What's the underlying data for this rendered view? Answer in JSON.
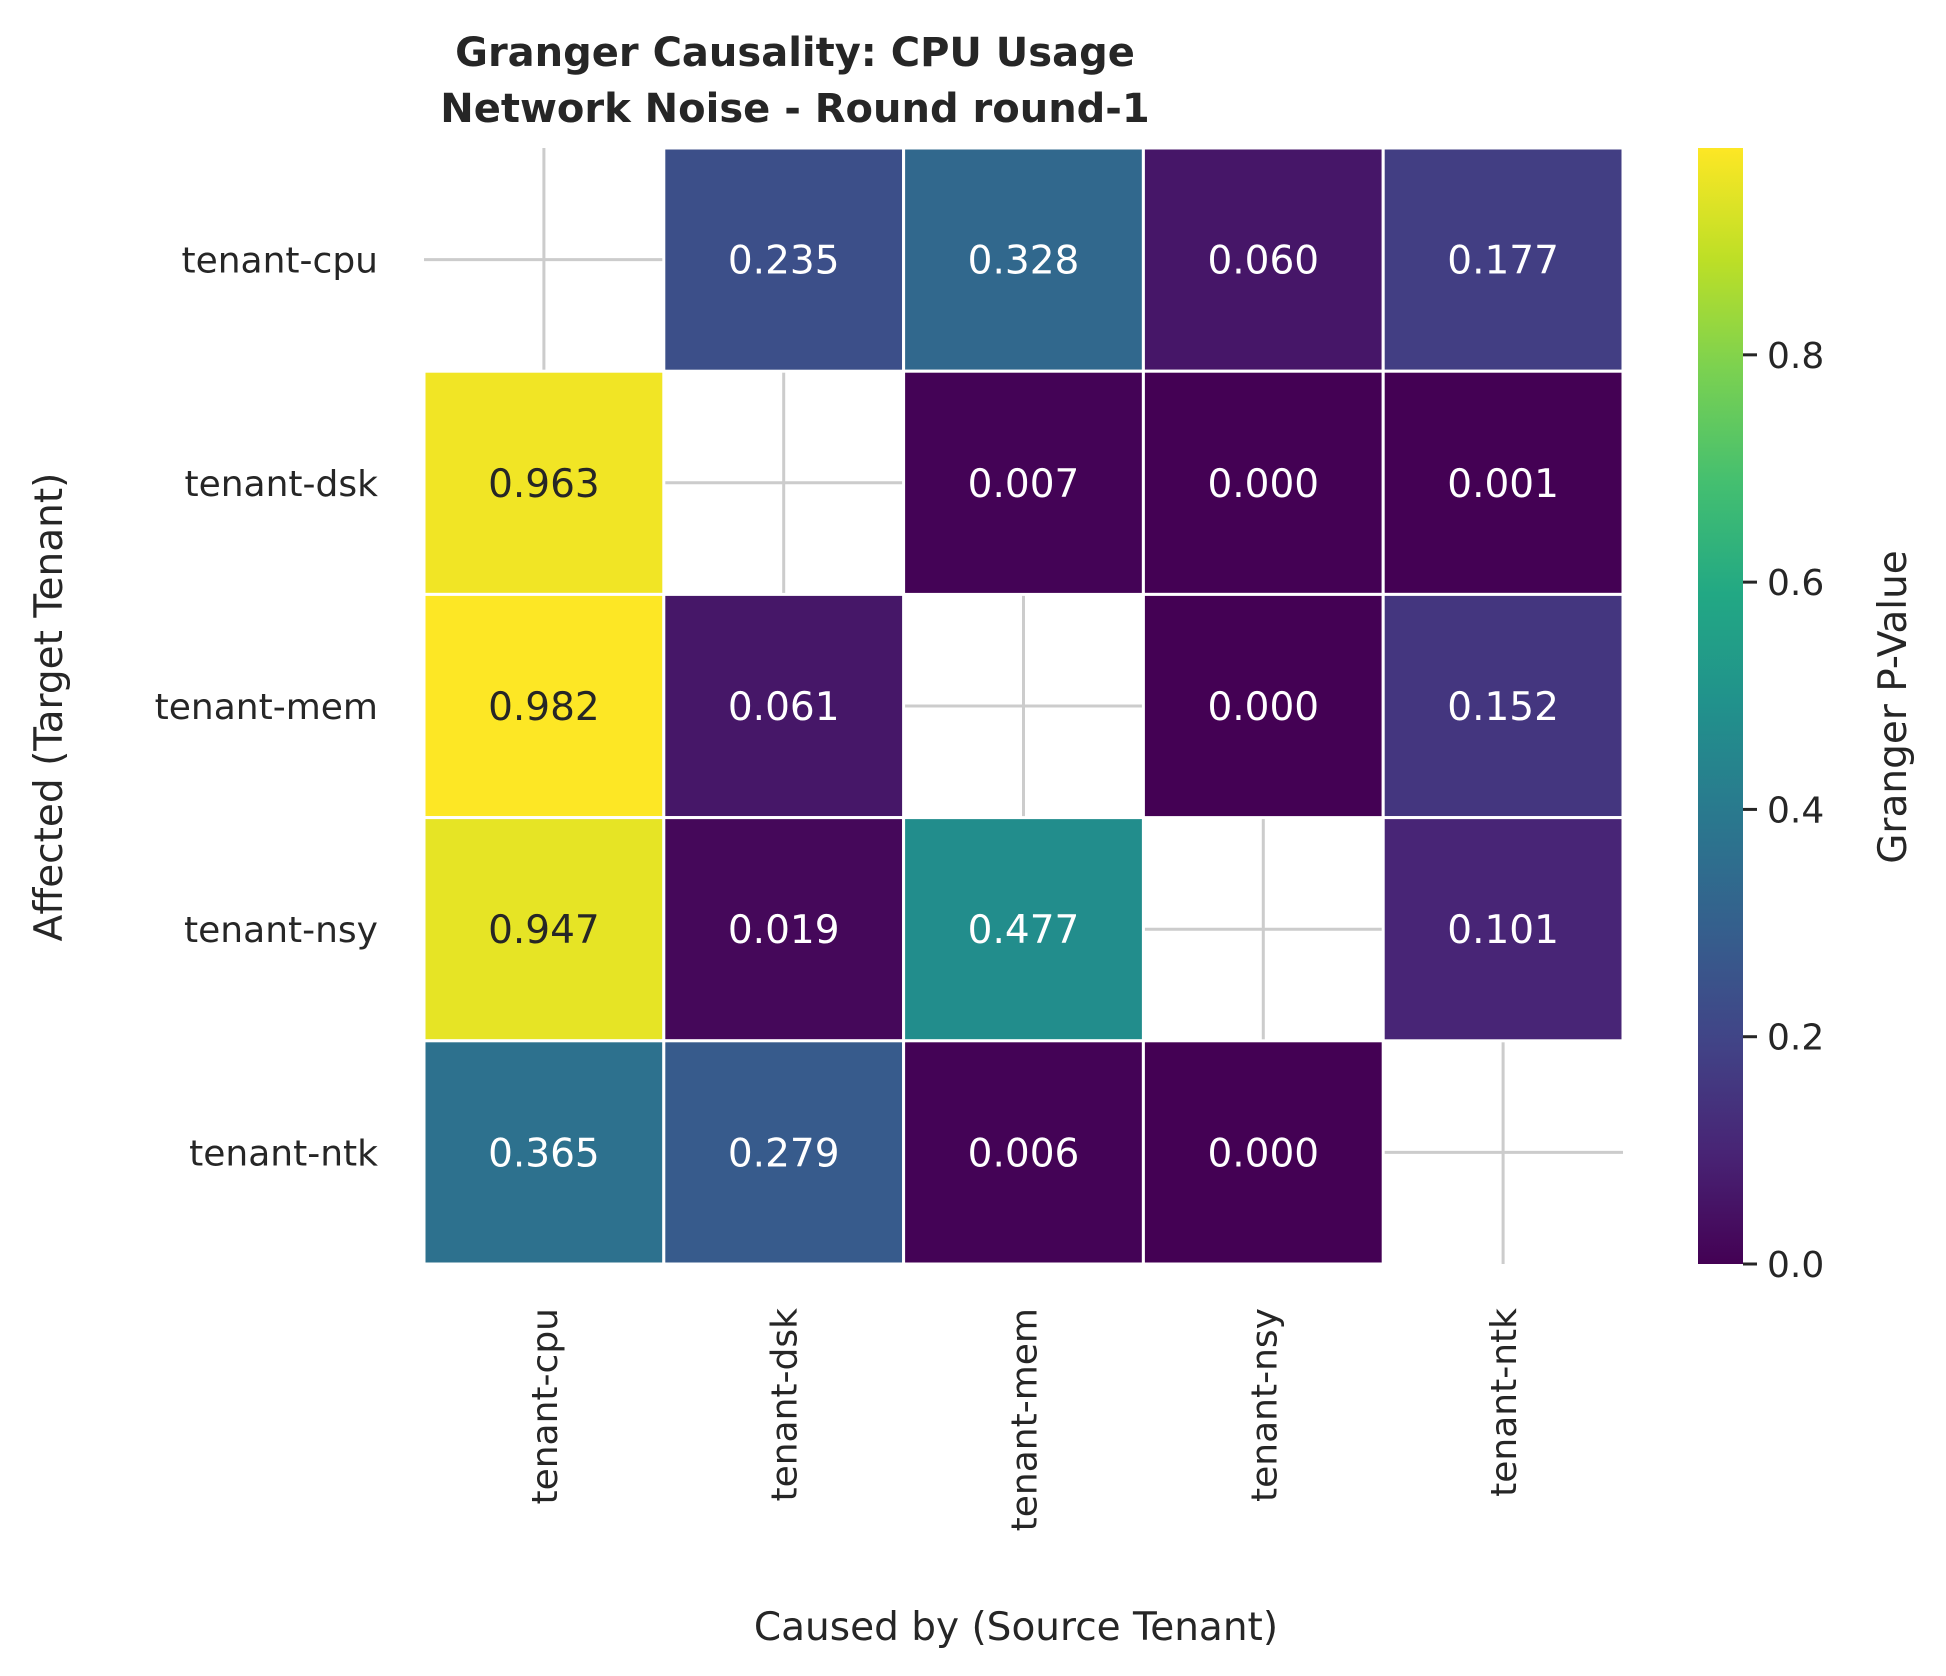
{
  "chart_data": {
    "type": "heatmap",
    "title_lines": [
      "Granger Causality: CPU Usage",
      "Network Noise - Round round-1"
    ],
    "xlabel": "Caused by (Source Tenant)",
    "ylabel": "Affected (Target Tenant)",
    "x_categories": [
      "tenant-cpu",
      "tenant-dsk",
      "tenant-mem",
      "tenant-nsy",
      "tenant-ntk"
    ],
    "y_categories": [
      "tenant-cpu",
      "tenant-dsk",
      "tenant-mem",
      "tenant-nsy",
      "tenant-ntk"
    ],
    "values": [
      [
        null,
        0.235,
        0.328,
        0.06,
        0.177
      ],
      [
        0.963,
        null,
        0.007,
        0.0,
        0.001
      ],
      [
        0.982,
        0.061,
        null,
        0.0,
        0.152
      ],
      [
        0.947,
        0.019,
        0.477,
        null,
        0.101
      ],
      [
        0.365,
        0.279,
        0.006,
        0.0,
        null
      ]
    ],
    "value_format": "3 decimals",
    "colormap": "viridis",
    "colorbar": {
      "label": "Granger P-Value",
      "vmin": 0.0,
      "vmax": 0.982,
      "ticks": [
        0.0,
        0.2,
        0.4,
        0.6,
        0.8
      ],
      "tick_labels": [
        "0.0",
        "0.2",
        "0.4",
        "0.6",
        "0.8"
      ]
    },
    "grid": true,
    "colors": {
      "text_dark": "#262626",
      "text_light": "#ffffff",
      "grid": "#cccccc",
      "cell_border": "#ffffff"
    }
  }
}
